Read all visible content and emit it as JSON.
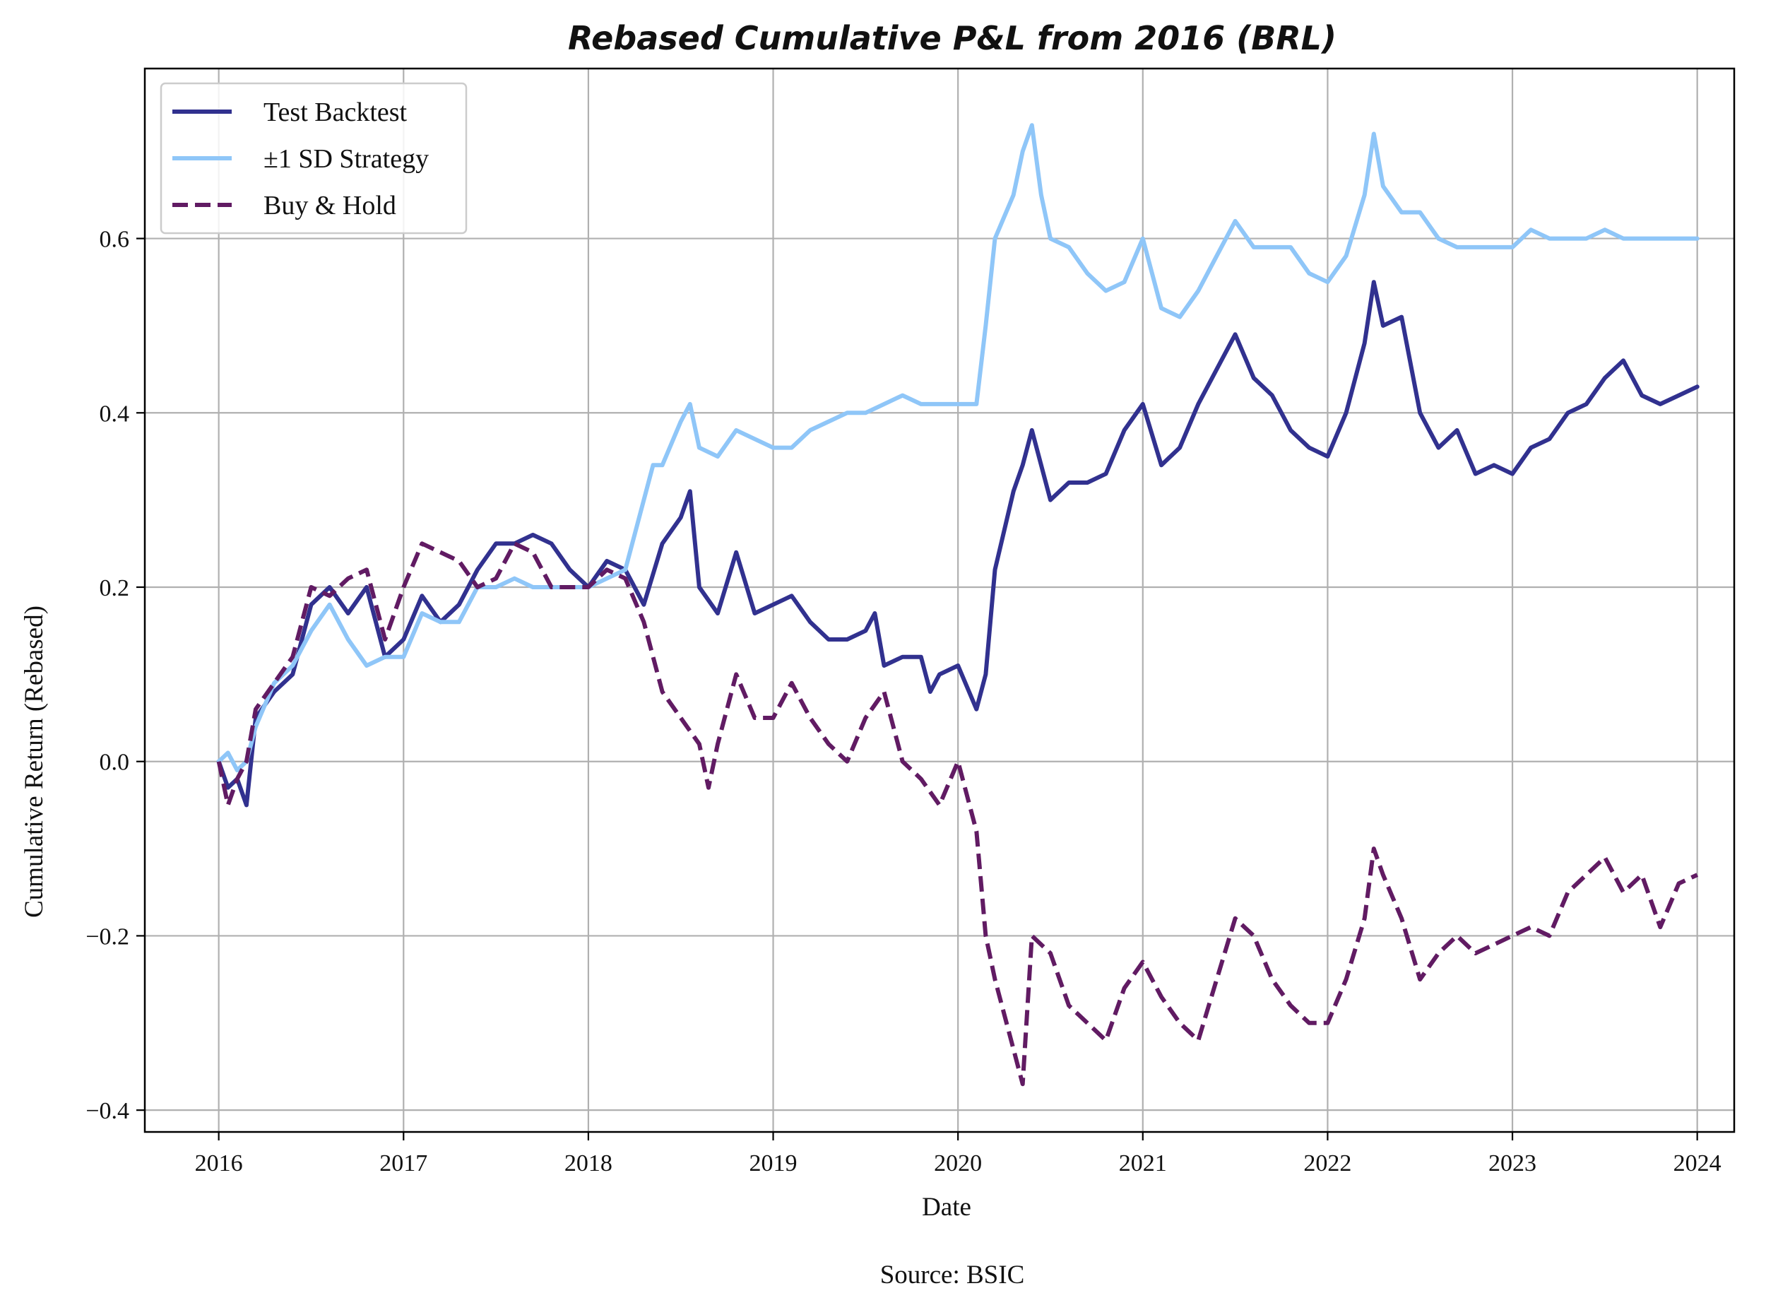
{
  "chart_data": {
    "type": "line",
    "title": "Rebased Cumulative P&L from 2016 (BRL)",
    "xlabel": "Date",
    "ylabel": "Cumulative Return (Rebased)",
    "source": "Source: BSIC",
    "xlim": [
      2015.6,
      2024.2
    ],
    "ylim": [
      -0.425,
      0.795
    ],
    "xticks": [
      2016,
      2017,
      2018,
      2019,
      2020,
      2021,
      2022,
      2023,
      2024
    ],
    "xtick_labels": [
      "2016",
      "2017",
      "2018",
      "2019",
      "2020",
      "2021",
      "2022",
      "2023",
      "2024"
    ],
    "yticks": [
      -0.4,
      -0.2,
      0.0,
      0.2,
      0.4,
      0.6
    ],
    "ytick_labels": [
      "−0.4",
      "−0.2",
      "0.0",
      "0.2",
      "0.4",
      "0.6"
    ],
    "grid": true,
    "legend_position": "top-left",
    "series": [
      {
        "name": "Test Backtest",
        "color": "#31318f",
        "style": "solid",
        "x": [
          2016.0,
          2016.05,
          2016.1,
          2016.15,
          2016.2,
          2016.3,
          2016.4,
          2016.5,
          2016.6,
          2016.7,
          2016.8,
          2016.9,
          2017.0,
          2017.1,
          2017.2,
          2017.3,
          2017.4,
          2017.5,
          2017.6,
          2017.7,
          2017.8,
          2017.9,
          2018.0,
          2018.1,
          2018.2,
          2018.3,
          2018.4,
          2018.5,
          2018.55,
          2018.6,
          2018.7,
          2018.8,
          2018.9,
          2019.0,
          2019.1,
          2019.2,
          2019.3,
          2019.4,
          2019.5,
          2019.55,
          2019.6,
          2019.7,
          2019.8,
          2019.85,
          2019.9,
          2020.0,
          2020.1,
          2020.15,
          2020.2,
          2020.3,
          2020.35,
          2020.4,
          2020.5,
          2020.6,
          2020.7,
          2020.8,
          2020.9,
          2021.0,
          2021.1,
          2021.2,
          2021.3,
          2021.4,
          2021.5,
          2021.6,
          2021.7,
          2021.8,
          2021.9,
          2022.0,
          2022.1,
          2022.2,
          2022.25,
          2022.3,
          2022.4,
          2022.5,
          2022.6,
          2022.7,
          2022.8,
          2022.9,
          2023.0,
          2023.1,
          2023.2,
          2023.3,
          2023.4,
          2023.5,
          2023.6,
          2023.7,
          2023.8,
          2023.9,
          2024.0
        ],
        "y": [
          0.0,
          -0.03,
          -0.02,
          -0.05,
          0.05,
          0.08,
          0.1,
          0.18,
          0.2,
          0.17,
          0.2,
          0.12,
          0.14,
          0.19,
          0.16,
          0.18,
          0.22,
          0.25,
          0.25,
          0.26,
          0.25,
          0.22,
          0.2,
          0.23,
          0.22,
          0.18,
          0.25,
          0.28,
          0.31,
          0.2,
          0.17,
          0.24,
          0.17,
          0.18,
          0.19,
          0.16,
          0.14,
          0.14,
          0.15,
          0.17,
          0.11,
          0.12,
          0.12,
          0.08,
          0.1,
          0.11,
          0.06,
          0.1,
          0.22,
          0.31,
          0.34,
          0.38,
          0.3,
          0.32,
          0.32,
          0.33,
          0.38,
          0.41,
          0.34,
          0.36,
          0.41,
          0.45,
          0.49,
          0.44,
          0.42,
          0.38,
          0.36,
          0.35,
          0.4,
          0.48,
          0.55,
          0.5,
          0.51,
          0.4,
          0.36,
          0.38,
          0.33,
          0.34,
          0.33,
          0.36,
          0.37,
          0.4,
          0.41,
          0.44,
          0.46,
          0.42,
          0.41,
          0.42,
          0.43
        ]
      },
      {
        "name": "±1 SD Strategy",
        "color": "#8fc6f8",
        "style": "solid",
        "x": [
          2016.0,
          2016.05,
          2016.1,
          2016.15,
          2016.2,
          2016.3,
          2016.4,
          2016.5,
          2016.6,
          2016.7,
          2016.8,
          2016.9,
          2017.0,
          2017.1,
          2017.2,
          2017.3,
          2017.4,
          2017.5,
          2017.6,
          2017.7,
          2017.8,
          2017.9,
          2018.0,
          2018.1,
          2018.2,
          2018.3,
          2018.35,
          2018.4,
          2018.5,
          2018.55,
          2018.6,
          2018.7,
          2018.8,
          2018.9,
          2019.0,
          2019.1,
          2019.2,
          2019.3,
          2019.4,
          2019.5,
          2019.6,
          2019.7,
          2019.8,
          2019.9,
          2020.0,
          2020.1,
          2020.15,
          2020.2,
          2020.3,
          2020.35,
          2020.4,
          2020.45,
          2020.5,
          2020.6,
          2020.7,
          2020.8,
          2020.9,
          2021.0,
          2021.05,
          2021.1,
          2021.2,
          2021.3,
          2021.4,
          2021.5,
          2021.6,
          2021.7,
          2021.8,
          2021.9,
          2022.0,
          2022.1,
          2022.2,
          2022.25,
          2022.3,
          2022.4,
          2022.5,
          2022.6,
          2022.7,
          2022.8,
          2022.9,
          2023.0,
          2023.1,
          2023.2,
          2023.3,
          2023.4,
          2023.5,
          2023.6,
          2023.7,
          2023.8,
          2023.9,
          2024.0
        ],
        "y": [
          0.0,
          0.01,
          -0.01,
          0.0,
          0.04,
          0.09,
          0.11,
          0.15,
          0.18,
          0.14,
          0.11,
          0.12,
          0.12,
          0.17,
          0.16,
          0.16,
          0.2,
          0.2,
          0.21,
          0.2,
          0.2,
          0.2,
          0.2,
          0.21,
          0.22,
          0.3,
          0.34,
          0.34,
          0.39,
          0.41,
          0.36,
          0.35,
          0.38,
          0.37,
          0.36,
          0.36,
          0.38,
          0.39,
          0.4,
          0.4,
          0.41,
          0.42,
          0.41,
          0.41,
          0.41,
          0.41,
          0.5,
          0.6,
          0.65,
          0.7,
          0.73,
          0.65,
          0.6,
          0.59,
          0.56,
          0.54,
          0.55,
          0.6,
          0.56,
          0.52,
          0.51,
          0.54,
          0.58,
          0.62,
          0.59,
          0.59,
          0.59,
          0.56,
          0.55,
          0.58,
          0.65,
          0.72,
          0.66,
          0.63,
          0.63,
          0.6,
          0.59,
          0.59,
          0.59,
          0.59,
          0.61,
          0.6,
          0.6,
          0.6,
          0.61,
          0.6,
          0.6,
          0.6,
          0.6,
          0.6
        ]
      },
      {
        "name": "Buy & Hold",
        "color": "#611b63",
        "style": "dashed",
        "x": [
          2016.0,
          2016.05,
          2016.1,
          2016.15,
          2016.2,
          2016.3,
          2016.4,
          2016.5,
          2016.6,
          2016.7,
          2016.8,
          2016.9,
          2017.0,
          2017.1,
          2017.2,
          2017.3,
          2017.4,
          2017.5,
          2017.6,
          2017.7,
          2017.8,
          2017.9,
          2018.0,
          2018.1,
          2018.2,
          2018.3,
          2018.4,
          2018.5,
          2018.6,
          2018.65,
          2018.7,
          2018.8,
          2018.9,
          2019.0,
          2019.1,
          2019.2,
          2019.3,
          2019.4,
          2019.5,
          2019.6,
          2019.7,
          2019.8,
          2019.9,
          2020.0,
          2020.1,
          2020.15,
          2020.2,
          2020.3,
          2020.35,
          2020.4,
          2020.5,
          2020.6,
          2020.7,
          2020.8,
          2020.9,
          2021.0,
          2021.1,
          2021.2,
          2021.3,
          2021.4,
          2021.5,
          2021.6,
          2021.7,
          2021.8,
          2021.9,
          2022.0,
          2022.1,
          2022.2,
          2022.25,
          2022.3,
          2022.4,
          2022.5,
          2022.6,
          2022.7,
          2022.8,
          2022.9,
          2023.0,
          2023.1,
          2023.2,
          2023.3,
          2023.4,
          2023.5,
          2023.6,
          2023.7,
          2023.8,
          2023.9,
          2024.0
        ],
        "y": [
          0.0,
          -0.05,
          -0.02,
          0.0,
          0.06,
          0.09,
          0.12,
          0.2,
          0.19,
          0.21,
          0.22,
          0.14,
          0.2,
          0.25,
          0.24,
          0.23,
          0.2,
          0.21,
          0.25,
          0.24,
          0.2,
          0.2,
          0.2,
          0.22,
          0.21,
          0.16,
          0.08,
          0.05,
          0.02,
          -0.03,
          0.02,
          0.1,
          0.05,
          0.05,
          0.09,
          0.05,
          0.02,
          0.0,
          0.05,
          0.08,
          0.0,
          -0.02,
          -0.05,
          0.0,
          -0.08,
          -0.2,
          -0.25,
          -0.33,
          -0.37,
          -0.2,
          -0.22,
          -0.28,
          -0.3,
          -0.32,
          -0.26,
          -0.23,
          -0.27,
          -0.3,
          -0.32,
          -0.25,
          -0.18,
          -0.2,
          -0.25,
          -0.28,
          -0.3,
          -0.3,
          -0.25,
          -0.18,
          -0.1,
          -0.13,
          -0.18,
          -0.25,
          -0.22,
          -0.2,
          -0.22,
          -0.21,
          -0.2,
          -0.19,
          -0.2,
          -0.15,
          -0.13,
          -0.11,
          -0.15,
          -0.13,
          -0.19,
          -0.14,
          -0.13
        ]
      }
    ]
  }
}
